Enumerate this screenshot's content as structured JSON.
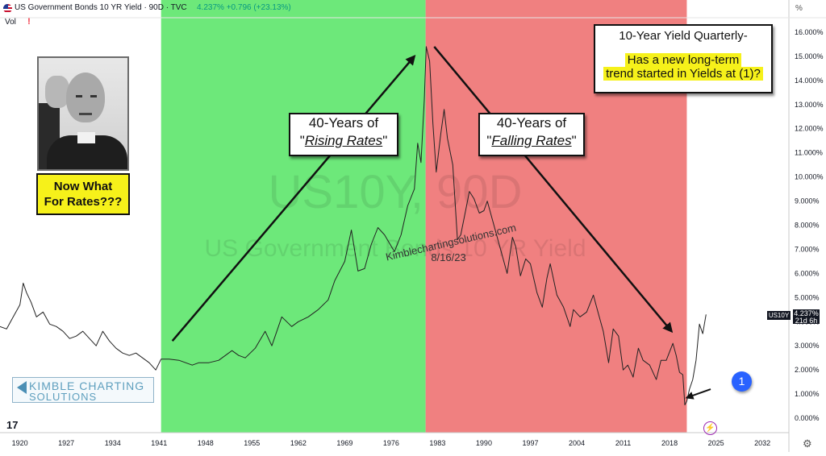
{
  "header": {
    "title": "US Government Bonds 10 YR Yield · 90D · TVC",
    "price": "4.237%",
    "change": "+0.796 (+23.13%)",
    "vol_label": "Vol",
    "percent_label": "%",
    "warning_icon": "warning-icon"
  },
  "watermark": {
    "line1": "US10Y, 90D",
    "line2": "US Government Bonds 10 YR Yield"
  },
  "notes": {
    "rising_line1": "40-Years of",
    "rising_quote_open": "\"",
    "rising_word": "Rising Rates",
    "rising_quote_close": "\"",
    "falling_line1": "40-Years of",
    "falling_quote_open": "\"",
    "falling_word": "Falling Rates",
    "falling_quote_close": "\"",
    "title_line1": "10-Year Yield Quarterly-",
    "title_line2": "Has a new long-term",
    "title_line3": "trend started in Yields at (1)?",
    "now_what_line1": "Now What",
    "now_what_line2": "For Rates???",
    "signature_line1": "Kimblechartingsolutions.com",
    "signature_line2": "8/16/23"
  },
  "logo": {
    "line1": "KIMBLE CHARTING",
    "line2": "SOLUTIONS",
    "tv": "17"
  },
  "marker": {
    "label": "1"
  },
  "price_tag": {
    "symbol": "US10Y",
    "value": "4.237%",
    "countdown": "21d 6h"
  },
  "icons": {
    "bolt": "bolt-icon",
    "settings": "gear-icon"
  },
  "colors": {
    "rising_zone": "#6de87a",
    "falling_zone": "#f08080",
    "line": "#222222",
    "highlight": "#f6f11a",
    "marker": "#2962ff"
  },
  "chart_data": {
    "type": "line",
    "title": "US Government Bonds 10 YR Yield · 90D · TVC",
    "xlim": [
      1917,
      2036
    ],
    "ylim": [
      -0.6,
      16.6
    ],
    "x_ticks": [
      "1920",
      "1927",
      "1934",
      "1941",
      "1948",
      "1955",
      "1962",
      "1969",
      "1976",
      "1983",
      "1990",
      "1997",
      "2004",
      "2011",
      "2018",
      "2025",
      "2032"
    ],
    "x_tick_values": [
      1920,
      1927,
      1934,
      1941,
      1948,
      1955,
      1962,
      1969,
      1976,
      1983,
      1990,
      1997,
      2004,
      2011,
      2018,
      2025,
      2032
    ],
    "y_ticks": [
      "0.000%",
      "1.000%",
      "2.000%",
      "3.000%",
      "4.000%",
      "5.000%",
      "6.000%",
      "7.000%",
      "8.000%",
      "9.000%",
      "10.000%",
      "11.000%",
      "12.000%",
      "13.000%",
      "14.000%",
      "15.000%",
      "16.000%"
    ],
    "y_tick_values": [
      0,
      1,
      2,
      3,
      4,
      5,
      6,
      7,
      8,
      9,
      10,
      11,
      12,
      13,
      14,
      15,
      16
    ],
    "shaded_regions": [
      {
        "x0": 1941.3,
        "x1": 1981.2,
        "color": "#6de87a"
      },
      {
        "x0": 1981.2,
        "x1": 2020.6,
        "color": "#f08080"
      }
    ],
    "arrows": [
      {
        "x0": 1943.0,
        "y0": 3.2,
        "x1": 1979.5,
        "y1": 15.0
      },
      {
        "x0": 1982.5,
        "y0": 15.4,
        "x1": 2018.3,
        "y1": 3.6
      },
      {
        "x0": 2024.2,
        "y0": 1.2,
        "x1": 2020.6,
        "y1": 0.85
      }
    ],
    "series": [
      {
        "values_x": [
          1917,
          1918,
          1919,
          1920,
          1920.5,
          1921,
          1921.7,
          1922.5,
          1923.5,
          1924.5,
          1925.5,
          1926.5,
          1927.5,
          1928.5,
          1929.5,
          1930.5,
          1931.5,
          1932.5,
          1933.5,
          1934.5,
          1935.5,
          1936.5,
          1937.5,
          1938.5,
          1939.5,
          1940.5,
          1941.3,
          1942.5,
          1944,
          1946,
          1947,
          1948.5,
          1950,
          1952,
          1953,
          1954,
          1955.5,
          1957,
          1958,
          1959.5,
          1961,
          1962,
          1963.5,
          1965,
          1966.5,
          1967.5,
          1969,
          1970,
          1971,
          1972,
          1973,
          1974,
          1975,
          1976.5,
          1977.5,
          1978.5,
          1979.5,
          1980,
          1980.5,
          1981,
          1981.3,
          1981.8,
          1982.3,
          1982.8,
          1983.5,
          1984,
          1984.5,
          1985.3,
          1986,
          1986.5,
          1987.3,
          1987.8,
          1988.5,
          1989.3,
          1990,
          1990.5,
          1991.5,
          1992.5,
          1993.5,
          1994.3,
          1994.8,
          1995.5,
          1996.3,
          1997,
          1998,
          1998.8,
          1999.5,
          2000,
          2001,
          2002,
          2003,
          2003.5,
          2004.5,
          2005.5,
          2006.5,
          2007.3,
          2008,
          2008.8,
          2009.5,
          2010.3,
          2011,
          2011.7,
          2012.5,
          2013.3,
          2014,
          2015,
          2016,
          2016.7,
          2017.5,
          2018.5,
          2019,
          2019.5,
          2020,
          2020.3,
          2020.6,
          2021,
          2021.5,
          2022,
          2022.5,
          2023,
          2023.5
        ],
        "values": [
          3.8,
          3.7,
          4.2,
          4.7,
          5.6,
          5.2,
          4.8,
          4.2,
          4.4,
          3.9,
          3.8,
          3.6,
          3.3,
          3.4,
          3.6,
          3.3,
          3.0,
          3.6,
          3.2,
          2.9,
          2.7,
          2.6,
          2.7,
          2.5,
          2.3,
          2.0,
          2.45,
          2.45,
          2.4,
          2.2,
          2.3,
          2.3,
          2.4,
          2.8,
          2.6,
          2.5,
          2.9,
          3.6,
          3.0,
          4.2,
          3.8,
          4.0,
          4.2,
          4.5,
          4.9,
          5.7,
          6.5,
          7.8,
          6.1,
          6.2,
          7.2,
          7.9,
          7.6,
          6.9,
          7.6,
          8.8,
          9.5,
          11.4,
          10.6,
          13.2,
          15.4,
          14.8,
          12.2,
          10.2,
          11.8,
          12.8,
          11.6,
          10.5,
          7.4,
          7.6,
          8.7,
          9.4,
          9.1,
          8.5,
          8.6,
          9.0,
          8.0,
          7.0,
          6.0,
          7.5,
          7.1,
          5.9,
          6.6,
          6.4,
          5.2,
          4.6,
          5.8,
          6.4,
          5.1,
          4.6,
          3.8,
          4.5,
          4.2,
          4.4,
          5.1,
          4.3,
          3.6,
          2.3,
          3.7,
          3.4,
          2.0,
          2.2,
          1.7,
          2.9,
          2.4,
          2.2,
          1.6,
          2.4,
          2.4,
          3.1,
          2.6,
          1.9,
          1.8,
          0.55,
          0.7,
          1.2,
          1.6,
          2.4,
          3.9,
          3.5,
          4.3
        ]
      }
    ]
  }
}
